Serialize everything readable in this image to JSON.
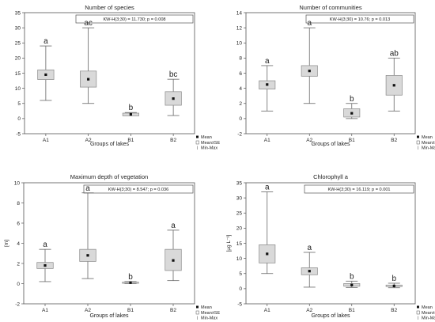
{
  "x_label": "Groups of lakes",
  "legend": {
    "mean": "Mean",
    "se": "Mean±SE",
    "minmax": "Min-Max"
  },
  "chart_data": [
    {
      "type": "boxplot",
      "title": "Number of species",
      "ylabel": "",
      "stat_text": "KW-H(3;30) = 11.730; p = 0.008",
      "ylim": [
        -5,
        35
      ],
      "yticks": [
        -5,
        0,
        5,
        10,
        15,
        20,
        25,
        30,
        35
      ],
      "categories": [
        "A1",
        "A2",
        "B1",
        "B2"
      ],
      "mean": [
        14.5,
        13.0,
        1.4,
        6.6
      ],
      "se_low": [
        12.9,
        10.4,
        0.9,
        4.4
      ],
      "se_high": [
        16.1,
        15.7,
        1.8,
        8.9
      ],
      "min": [
        6.0,
        5.0,
        1.0,
        1.0
      ],
      "max": [
        24.0,
        30.0,
        2.0,
        13.0
      ],
      "letters": [
        "a",
        "ac",
        "b",
        "bc"
      ]
    },
    {
      "type": "boxplot",
      "title": "Number of communities",
      "ylabel": "",
      "stat_text": "KW-H(3;30) = 10.76; p = 0.013",
      "ylim": [
        -2,
        14
      ],
      "yticks": [
        -2,
        0,
        2,
        4,
        6,
        8,
        10,
        12,
        14
      ],
      "categories": [
        "A1",
        "A2",
        "B1",
        "B2"
      ],
      "mean": [
        4.5,
        6.3,
        0.7,
        4.4
      ],
      "se_low": [
        3.9,
        5.6,
        0.2,
        3.1
      ],
      "se_high": [
        5.0,
        7.0,
        1.3,
        5.7
      ],
      "min": [
        1.0,
        2.0,
        0.0,
        1.0
      ],
      "max": [
        7.0,
        12.0,
        2.0,
        8.0
      ],
      "letters": [
        "a",
        "a",
        "b",
        "ab"
      ]
    },
    {
      "type": "boxplot",
      "title": "Maximum depth of vegetation",
      "ylabel": "[m]",
      "stat_text": "KW-H(3;30) = 8.547; p = 0.036",
      "ylim": [
        -2,
        10
      ],
      "yticks": [
        -2,
        0,
        2,
        4,
        6,
        8,
        10
      ],
      "categories": [
        "A1",
        "A2",
        "B1",
        "B2"
      ],
      "mean": [
        1.8,
        2.8,
        0.1,
        2.3
      ],
      "se_low": [
        1.5,
        2.2,
        0.05,
        1.3
      ],
      "se_high": [
        2.1,
        3.4,
        0.15,
        3.4
      ],
      "min": [
        0.2,
        0.5,
        0.0,
        0.3
      ],
      "max": [
        3.4,
        9.0,
        0.2,
        5.3
      ],
      "letters": [
        "a",
        "a",
        "b",
        "a"
      ]
    },
    {
      "type": "boxplot",
      "title": "Chlorophyll a",
      "ylabel": "[µg L⁻¹]",
      "stat_text": "KW-H(3;30) = 16.119; p = 0.001",
      "ylim": [
        -5,
        35
      ],
      "yticks": [
        -5,
        0,
        5,
        10,
        15,
        20,
        25,
        30,
        35
      ],
      "categories": [
        "A1",
        "A2",
        "B1",
        "B2"
      ],
      "mean": [
        11.5,
        5.8,
        1.2,
        0.9
      ],
      "se_low": [
        8.5,
        4.6,
        0.8,
        0.7
      ],
      "se_high": [
        14.5,
        6.9,
        1.7,
        1.2
      ],
      "min": [
        5.0,
        0.5,
        0.4,
        0.3
      ],
      "max": [
        32.0,
        12.0,
        2.5,
        1.8
      ],
      "letters": [
        "a",
        "a",
        "b",
        "b"
      ]
    }
  ]
}
